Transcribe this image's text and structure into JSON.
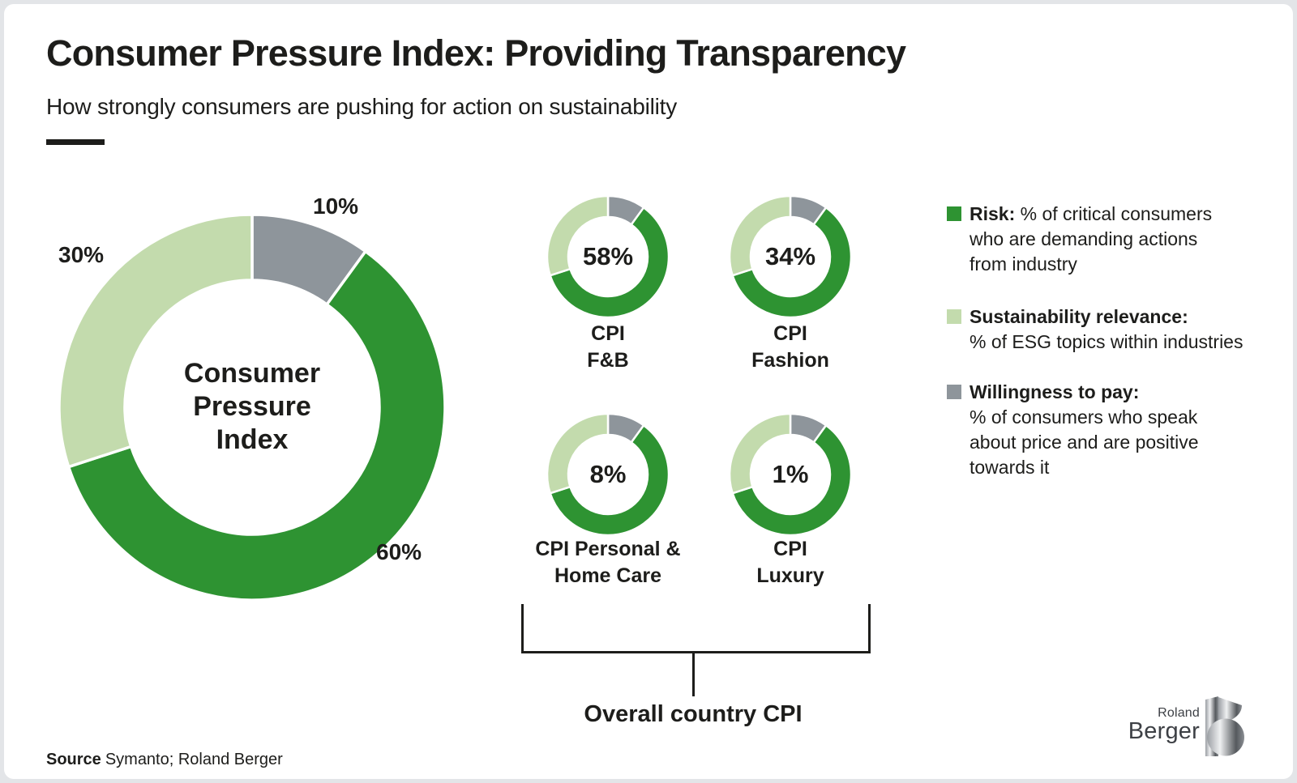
{
  "header": {
    "title": "Consumer Pressure Index: Providing Transparency",
    "subtitle": "How strongly consumers are pushing for action on sustainability"
  },
  "colors": {
    "risk_green": "#2E9332",
    "sustainability_light_green": "#C3DBAD",
    "willingness_gray": "#8E959B",
    "ink": "#1D1D1B",
    "logo_gray": "#3D4045"
  },
  "chart_data": [
    {
      "name": "consumer-pressure-index",
      "type": "pie",
      "title": "Consumer Pressure Index",
      "center_lines": [
        "Consumer",
        "Pressure",
        "Index"
      ],
      "outer_radius": 238,
      "inner_radius": 157,
      "slices": [
        {
          "key": "willingness-to-pay",
          "label": "Willingness to pay",
          "value": 10,
          "data_label": "10%",
          "color_key": "willingness_gray"
        },
        {
          "key": "risk",
          "label": "Risk",
          "value": 60,
          "data_label": "60%",
          "color_key": "risk_green"
        },
        {
          "key": "sustainability-relevance",
          "label": "Sustainability relevance",
          "value": 30,
          "data_label": "30%",
          "color_key": "sustainability_light_green"
        }
      ]
    },
    {
      "name": "cpi-fb",
      "type": "pie",
      "center_value": "58%",
      "label_lines": [
        "CPI",
        "F&B"
      ],
      "outer_radius": 75,
      "inner_radius": 49,
      "slices": [
        {
          "key": "willingness-to-pay",
          "label": "Willingness to pay",
          "value": 10,
          "color_key": "willingness_gray"
        },
        {
          "key": "risk",
          "label": "Risk",
          "value": 60,
          "color_key": "risk_green"
        },
        {
          "key": "sustainability-relevance",
          "label": "Sustainability relevance",
          "value": 30,
          "color_key": "sustainability_light_green"
        }
      ]
    },
    {
      "name": "cpi-fashion",
      "type": "pie",
      "center_value": "34%",
      "label_lines": [
        "CPI",
        "Fashion"
      ],
      "outer_radius": 75,
      "inner_radius": 49,
      "slices": [
        {
          "key": "willingness-to-pay",
          "label": "Willingness to pay",
          "value": 10,
          "color_key": "willingness_gray"
        },
        {
          "key": "risk",
          "label": "Risk",
          "value": 60,
          "color_key": "risk_green"
        },
        {
          "key": "sustainability-relevance",
          "label": "Sustainability relevance",
          "value": 30,
          "color_key": "sustainability_light_green"
        }
      ]
    },
    {
      "name": "cpi-personal-home-care",
      "type": "pie",
      "center_value": "8%",
      "label_lines": [
        "CPI Personal &",
        "Home Care"
      ],
      "outer_radius": 75,
      "inner_radius": 49,
      "slices": [
        {
          "key": "willingness-to-pay",
          "label": "Willingness to pay",
          "value": 10,
          "color_key": "willingness_gray"
        },
        {
          "key": "risk",
          "label": "Risk",
          "value": 60,
          "color_key": "risk_green"
        },
        {
          "key": "sustainability-relevance",
          "label": "Sustainability relevance",
          "value": 30,
          "color_key": "sustainability_light_green"
        }
      ]
    },
    {
      "name": "cpi-luxury",
      "type": "pie",
      "center_value": "1%",
      "label_lines": [
        "CPI",
        "Luxury"
      ],
      "outer_radius": 75,
      "inner_radius": 49,
      "slices": [
        {
          "key": "willingness-to-pay",
          "label": "Willingness to pay",
          "value": 10,
          "color_key": "willingness_gray"
        },
        {
          "key": "risk",
          "label": "Risk",
          "value": 60,
          "color_key": "risk_green"
        },
        {
          "key": "sustainability-relevance",
          "label": "Sustainability relevance",
          "value": 30,
          "color_key": "sustainability_light_green"
        }
      ]
    }
  ],
  "legend": {
    "items": [
      {
        "key": "risk",
        "color_key": "risk_green",
        "title": "Risk:",
        "desc": " % of critical consumers\nwho are demanding actions\nfrom industry"
      },
      {
        "key": "sustainability-relevance",
        "color_key": "sustainability_light_green",
        "title": "Sustainability relevance:",
        "desc": "\n% of ESG topics within industries"
      },
      {
        "key": "willingness-to-pay",
        "color_key": "willingness_gray",
        "title": "Willingness to pay:",
        "desc": "\n% of consumers who speak\nabout price and are positive\ntowards it"
      }
    ]
  },
  "bracket": {
    "label": "Overall country CPI"
  },
  "source": {
    "label": "Source",
    "text": "Symanto; Roland Berger"
  },
  "logo": {
    "line1": "Roland",
    "line2": "Berger",
    "mark": "B"
  }
}
